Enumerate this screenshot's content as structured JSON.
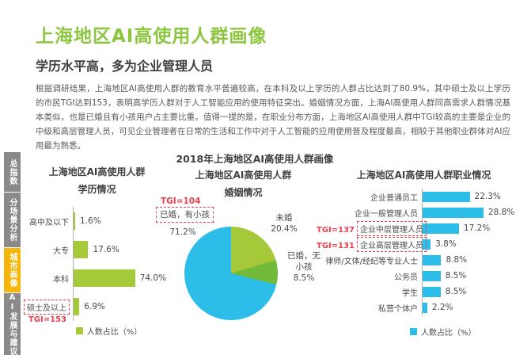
{
  "page": {
    "title": "上海地区AI高使用人群画像",
    "subtitle": "学历水平高，多为企业管理人员",
    "body": "根据调研结果，上海地区AI高使用人群的教育水平普遍较高，在本科及以上学历的人群占比达到了80.9%，其中硕士及以上学历的市民TGI达到153，表明高学历人群对于人工智能应用的使用特征突出。婚姻情况方面，上海AI高使用人群同高需求人群情况基本类似，也是已婚且有小孩用户占主要比重。值得一提的是，在职业分布方面，上海地区AI高使用人群中TGI较高的主要是企业的中级和高层管理人员，可见企业管理者在日常的生活和工作中对于人工智能的应用使用普及程度最高，相较于其他职业群体对AI应用最为熟悉。"
  },
  "sidebar": {
    "items": [
      {
        "label": "总指数",
        "active": false
      },
      {
        "label": "分场景分析",
        "active": false
      },
      {
        "label": "城市画像",
        "active": true
      },
      {
        "label": "AI发展与建议",
        "active": false
      }
    ]
  },
  "main_chart_title": "2018年上海地区AI高使用人群画像",
  "colors": {
    "accent_green": "#8cc63f",
    "bar_green": "#a5c938",
    "pie_green_dark": "#72ba3a",
    "cyan": "#2cbde9",
    "highlight_red": "#e8404e",
    "sidebar_gray": "#8a8a8a",
    "sidebar_yellow": "#f5b50a"
  },
  "chart_data": [
    {
      "type": "bar",
      "orientation": "horizontal",
      "title": "上海地区AI高使用人群",
      "subtitle": "学历情况",
      "categories": [
        "高中及以下",
        "大专",
        "本科",
        "硕士及以上"
      ],
      "values": [
        1.6,
        17.6,
        74.0,
        6.9
      ],
      "labels": [
        "1.6%",
        "17.6%",
        "74.0%",
        "6.9%"
      ],
      "highlights": [
        {
          "index": 3,
          "tgi": "TGI=153"
        }
      ],
      "legend": "人数占比（%）",
      "bar_color": "#a5c938",
      "xlim": [
        0,
        80
      ],
      "grid": false
    },
    {
      "type": "pie",
      "title": "上海地区AI高使用人群",
      "subtitle": "婚姻情况",
      "slices": [
        {
          "label": "未婚",
          "value": 20.4,
          "label_text": "20.4%",
          "color": "#a5c938"
        },
        {
          "label": "已婚，无小孩",
          "value": 8.5,
          "label_text": "8.5%",
          "color": "#72ba3a"
        },
        {
          "label": "已婚，有小孩",
          "value": 71.2,
          "label_text": "71.2%",
          "color": "#2cbde9",
          "tgi": "TGI=104"
        }
      ]
    },
    {
      "type": "bar",
      "orientation": "horizontal",
      "title": "上海地区AI高使用人群职业情况",
      "categories": [
        "企业普通员工",
        "企业一般管理人员",
        "企业中层管理人员",
        "企业高层管理人员",
        "律师/文体/经纪等专业人士",
        "公务员",
        "学生",
        "私营个体户"
      ],
      "values": [
        22.3,
        28.8,
        17.2,
        3.8,
        8.8,
        8.5,
        8.5,
        2.2
      ],
      "labels": [
        "22.3%",
        "28.8%",
        "17.2%",
        "3.8%",
        "8.8%",
        "8.5%",
        "8.5%",
        "2.2%"
      ],
      "highlights": [
        {
          "index": 2,
          "tgi": "TGI=137"
        },
        {
          "index": 3,
          "tgi": "TGI=131"
        }
      ],
      "legend": "人数占比（%）",
      "bar_color": "#2cbde9",
      "xlim": [
        0,
        30
      ],
      "grid": false
    }
  ]
}
